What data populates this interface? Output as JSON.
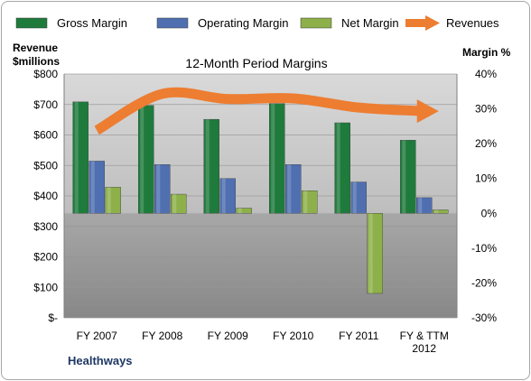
{
  "chart_data": {
    "type": "bar",
    "title": "12-Month Period Margins",
    "brand": "Healthways",
    "y_left_label": [
      "Revenue",
      "$millions"
    ],
    "y_right_label": "Margin %",
    "y_left_ticks": [
      "$800",
      "$700",
      "$600",
      "$500",
      "$400",
      "$300",
      "$200",
      "$100",
      "$-"
    ],
    "y_right_ticks": [
      "40%",
      "30%",
      "20%",
      "10%",
      "0%",
      "-10%",
      "-20%",
      "-30%"
    ],
    "y_left_range": [
      0,
      800
    ],
    "y_right_range": [
      -30,
      40
    ],
    "categories": [
      {
        "lines": [
          "FY 2007"
        ]
      },
      {
        "lines": [
          "FY 2008"
        ]
      },
      {
        "lines": [
          "FY 2009"
        ]
      },
      {
        "lines": [
          "FY 2010"
        ]
      },
      {
        "lines": [
          "FY 2011"
        ]
      },
      {
        "lines": [
          "FY & TTM",
          "2012"
        ]
      }
    ],
    "series": [
      {
        "name": "Gross Margin",
        "axis": "right",
        "kind": "bar",
        "color": "#1e7b3c",
        "values": [
          32.0,
          31.0,
          27.0,
          31.5,
          26.0,
          21.0
        ]
      },
      {
        "name": "Operating Margin",
        "axis": "right",
        "kind": "bar",
        "color": "#4f6fb0",
        "values": [
          15.0,
          14.0,
          10.0,
          14.0,
          9.0,
          4.5
        ]
      },
      {
        "name": "Net Margin",
        "axis": "right",
        "kind": "bar",
        "color": "#8db04a",
        "values": [
          7.5,
          5.5,
          1.5,
          6.5,
          -23.0,
          1.0
        ]
      },
      {
        "name": "Revenues",
        "axis": "left",
        "kind": "line",
        "color": "#ed7d31",
        "values": [
          615,
          735,
          718,
          720,
          690,
          678
        ]
      }
    ]
  }
}
